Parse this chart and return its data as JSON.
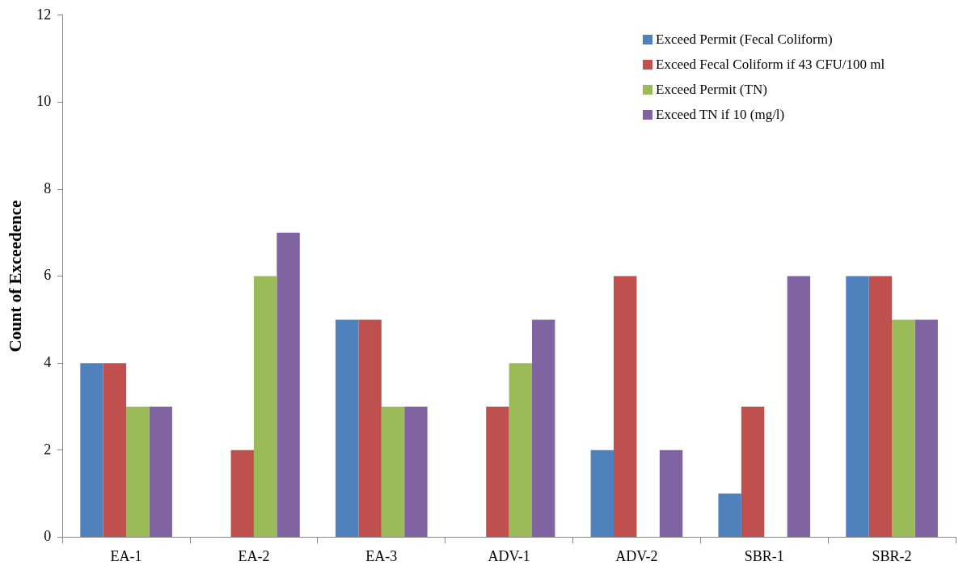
{
  "chart_data": {
    "type": "bar",
    "ylabel": "Count of Exceedence",
    "categories": [
      "EA-1",
      "EA-2",
      "EA-3",
      "ADV-1",
      "ADV-2",
      "SBR-1",
      "SBR-2"
    ],
    "series": [
      {
        "name": "Exceed Permit (Fecal Coliform)",
        "color": "#4f81bd",
        "values": [
          4,
          0,
          5,
          0,
          2,
          1,
          6
        ]
      },
      {
        "name": "Exceed Fecal Coliform if 43 CFU/100 ml",
        "color": "#c0504d",
        "values": [
          4,
          2,
          5,
          3,
          6,
          3,
          6
        ]
      },
      {
        "name": "Exceed Permit (TN)",
        "color": "#9bbb59",
        "values": [
          3,
          6,
          3,
          4,
          0,
          0,
          5
        ]
      },
      {
        "name": "Exceed TN if 10 (mg/l)",
        "color": "#8064a2",
        "values": [
          3,
          7,
          3,
          5,
          2,
          6,
          5
        ]
      }
    ],
    "ylim": [
      0,
      12
    ],
    "yticks": [
      0,
      2,
      4,
      6,
      8,
      10,
      12
    ],
    "grid": false,
    "legend": "top right"
  }
}
